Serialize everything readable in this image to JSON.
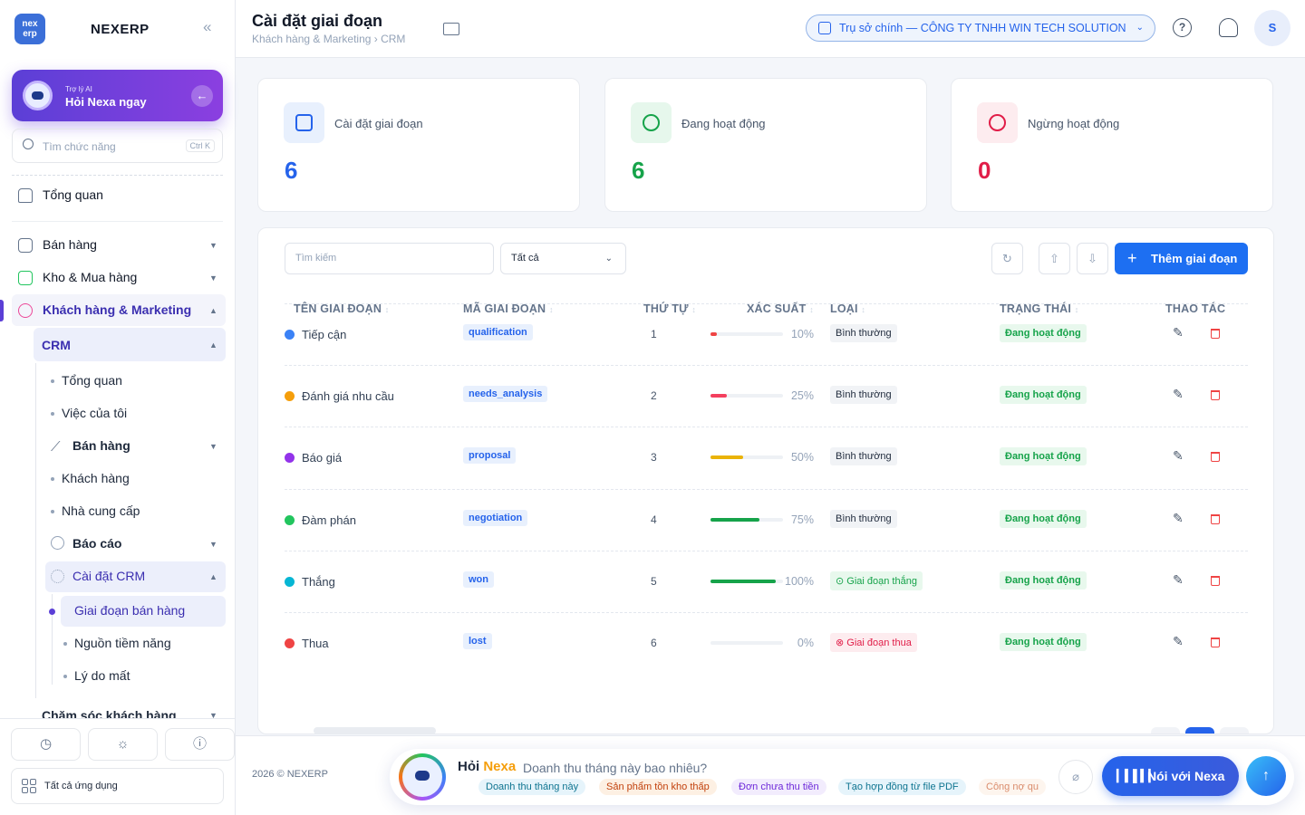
{
  "app": {
    "brand": "NEXERP",
    "logo_text": "nex erp"
  },
  "ai_card": {
    "subtitle": "Trợ lý AI",
    "title": "Hỏi Nexa ngay"
  },
  "sidebar_search": {
    "placeholder": "Tìm chức năng",
    "shortcut": "Ctrl K"
  },
  "sidebar": {
    "overview": "Tổng quan",
    "sales": "Bán hàng",
    "warehouse": "Kho & Mua hàng",
    "crm_marketing": "Khách hàng & Marketing",
    "crm": "CRM",
    "crm_items": {
      "overview": "Tổng quan",
      "my_tasks": "Việc của tôi",
      "sales": "Bán hàng",
      "customers": "Khách hàng",
      "suppliers": "Nhà cung cấp",
      "reports": "Báo cáo",
      "crm_settings": "Cài đặt CRM",
      "sales_stages": "Giai đoạn bán hàng",
      "lead_sources": "Nguồn tiềm năng",
      "lost_reasons": "Lý do mất"
    },
    "customer_care": "Chăm sóc khách hàng",
    "all_apps": "Tất cả ứng dụng"
  },
  "header": {
    "title": "Cài đặt giai đoạn",
    "breadcrumb": "Khách hàng & Marketing › CRM",
    "branch": "Trụ sở chính — CÔNG TY TNHH WIN TECH SOLUTION",
    "help": "?",
    "avatar": "S"
  },
  "stats": [
    {
      "label": "Cài đặt giai đoạn",
      "value": "6",
      "color": "#2563eb"
    },
    {
      "label": "Đang hoạt động",
      "value": "6",
      "color": "#16a34a"
    },
    {
      "label": "Ngừng hoạt động",
      "value": "0",
      "color": "#e11d48"
    }
  ],
  "toolbar": {
    "search_placeholder": "Tìm kiếm",
    "filter_value": "Tất cả",
    "add_label": "Thêm giai đoạn"
  },
  "table": {
    "columns": {
      "name": "TÊN GIAI ĐOẠN",
      "code": "MÃ GIAI ĐOẠN",
      "order": "THỨ TỰ",
      "probability": "XÁC SUẤT",
      "type": "LOẠI",
      "status": "TRẠNG THÁI",
      "actions": "THAO TÁC"
    },
    "rows": [
      {
        "name": "Tiếp cận",
        "dot": "#3b82f6",
        "code": "qualification",
        "order": "1",
        "pct": "10%",
        "pct_value": 10,
        "bar": "#ef4444",
        "type": "Bình thường",
        "status": "Đang hoạt động"
      },
      {
        "name": "Đánh giá nhu cầu",
        "dot": "#f59e0b",
        "code": "needs_analysis",
        "order": "2",
        "pct": "25%",
        "pct_value": 25,
        "bar": "#f43f5e",
        "type": "Bình thường",
        "status": "Đang hoạt động"
      },
      {
        "name": "Báo giá",
        "dot": "#9333ea",
        "code": "proposal",
        "order": "3",
        "pct": "50%",
        "pct_value": 50,
        "bar": "#eab308",
        "type": "Bình thường",
        "status": "Đang hoạt động"
      },
      {
        "name": "Đàm phán",
        "dot": "#22c55e",
        "code": "negotiation",
        "order": "4",
        "pct": "75%",
        "pct_value": 75,
        "bar": "#16a34a",
        "type": "Bình thường",
        "status": "Đang hoạt động"
      },
      {
        "name": "Thắng",
        "dot": "#06b6d4",
        "code": "won",
        "order": "5",
        "pct": "100%",
        "pct_value": 100,
        "bar": "#16a34a",
        "type": "Giai đoạn thắng",
        "status": "Đang hoạt động"
      },
      {
        "name": "Thua",
        "dot": "#ef4444",
        "code": "lost",
        "order": "6",
        "pct": "0%",
        "pct_value": 0,
        "bar": "#e5e7eb",
        "type": "Giai đoạn thua",
        "status": "Đang hoạt động"
      }
    ]
  },
  "footer": {
    "copyright": "2026 © NEXERP",
    "ask_title_a": "Hỏi",
    "ask_title_b": "Nexa",
    "ask_question": "Doanh thu tháng này bao nhiêu?",
    "chips": [
      "Doanh thu tháng này",
      "Sản phẩm tồn kho thấp",
      "Đơn chưa thu tiền",
      "Tạo hợp đồng từ file PDF",
      "Công nợ qu"
    ],
    "voice_label": "Nói với Nexa"
  }
}
